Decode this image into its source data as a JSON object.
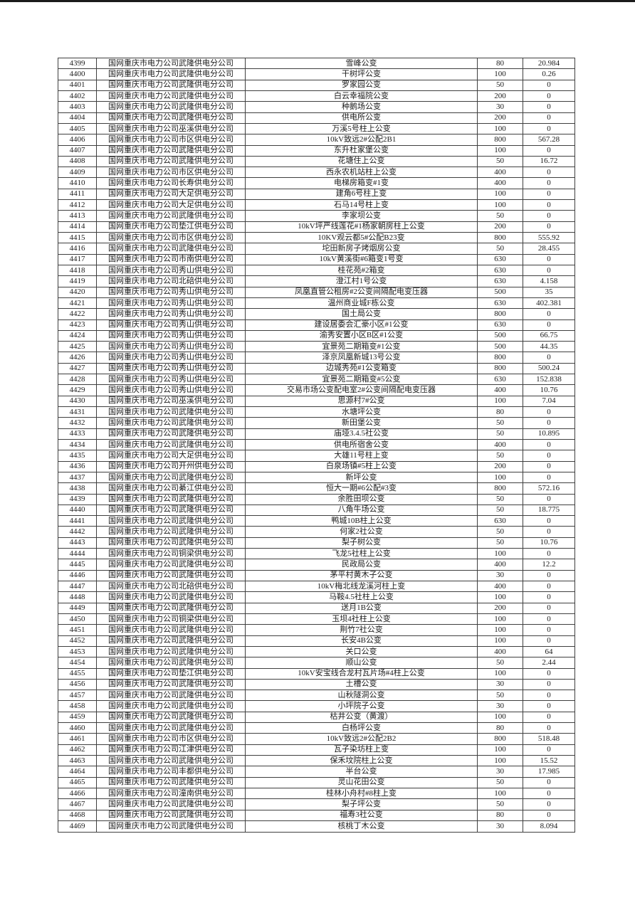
{
  "page": {
    "top_bar_color": "#1b1b1b",
    "table_border_color": "#3f3f3f",
    "background_color": "#ffffff"
  },
  "table": {
    "rows": [
      [
        "4399",
        "国网重庆市电力公司武隆供电分公司",
        "雪峰公变",
        "80",
        "20.984"
      ],
      [
        "4400",
        "国网重庆市电力公司武隆供电分公司",
        "干树坪公变",
        "100",
        "0.26"
      ],
      [
        "4401",
        "国网重庆市电力公司武隆供电分公司",
        "罗家园公变",
        "50",
        "0"
      ],
      [
        "4402",
        "国网重庆市电力公司武隆供电分公司",
        "白云幸福院公变",
        "200",
        "0"
      ],
      [
        "4403",
        "国网重庆市电力公司武隆供电分公司",
        "种鹅场公变",
        "30",
        "0"
      ],
      [
        "4404",
        "国网重庆市电力公司武隆供电分公司",
        "供电所公变",
        "200",
        "0"
      ],
      [
        "4405",
        "国网重庆市电力公司巫溪供电分公司",
        "万溪5号柱上公变",
        "100",
        "0"
      ],
      [
        "4406",
        "国网重庆市电力公司市区供电分公司",
        "10kV致远2#公配2B1",
        "800",
        "567.28"
      ],
      [
        "4407",
        "国网重庆市电力公司武隆供电分公司",
        "东升杜家堡公变",
        "100",
        "0"
      ],
      [
        "4408",
        "国网重庆市电力公司武隆供电分公司",
        "花塘住上公变",
        "50",
        "16.72"
      ],
      [
        "4409",
        "国网重庆市电力公司市区供电分公司",
        "西永农机站柱上公变",
        "400",
        "0"
      ],
      [
        "4410",
        "国网重庆市电力公司长寿供电分公司",
        "电梯房箱变#1变",
        "400",
        "0"
      ],
      [
        "4411",
        "国网重庆市电力公司大足供电分公司",
        "建角6号柱上变",
        "100",
        "0"
      ],
      [
        "4412",
        "国网重庆市电力公司大足供电分公司",
        "石马14号柱上变",
        "100",
        "0"
      ],
      [
        "4413",
        "国网重庆市电力公司武隆供电分公司",
        "李家坝公变",
        "50",
        "0"
      ],
      [
        "4414",
        "国网重庆市电力公司垫江供电分公司",
        "10kV坪严线莲花#1杨家朝房柱上公变",
        "200",
        "0"
      ],
      [
        "4415",
        "国网重庆市电力公司市区供电分公司",
        "10KV观云都5#公配B23变",
        "800",
        "555.92"
      ],
      [
        "4416",
        "国网重庆市电力公司武隆供电分公司",
        "坨田新房子烤烟房公变",
        "50",
        "28.455"
      ],
      [
        "4417",
        "国网重庆市电力公司市南供电分公司",
        "10kV黄溪街#6箱变1号变",
        "630",
        "0"
      ],
      [
        "4418",
        "国网重庆市电力公司秀山供电分公司",
        "桂花苑#2箱变",
        "630",
        "0"
      ],
      [
        "4419",
        "国网重庆市电力公司北碚供电分公司",
        "澄江村1号公变",
        "630",
        "4.158"
      ],
      [
        "4420",
        "国网重庆市电力公司秀山供电分公司",
        "凤凰直管公租房#2公变间隔配电变压器",
        "500",
        "35"
      ],
      [
        "4421",
        "国网重庆市电力公司秀山供电分公司",
        "温州商业城F栋公变",
        "630",
        "402.381"
      ],
      [
        "4422",
        "国网重庆市电力公司秀山供电分公司",
        "国土局公变",
        "800",
        "0"
      ],
      [
        "4423",
        "国网重庆市电力公司秀山供电分公司",
        "建设居委会汇豪小区#1公变",
        "630",
        "0"
      ],
      [
        "4424",
        "国网重庆市电力公司秀山供电分公司",
        "渝秀安置小区B区#1公变",
        "500",
        "66.75"
      ],
      [
        "4425",
        "国网重庆市电力公司秀山供电分公司",
        "宜景苑二期箱变#1公变",
        "500",
        "44.35"
      ],
      [
        "4426",
        "国网重庆市电力公司秀山供电分公司",
        "泽京凤凰新城13号公变",
        "800",
        "0"
      ],
      [
        "4427",
        "国网重庆市电力公司秀山供电分公司",
        "边城秀苑#1公变箱变",
        "800",
        "500.24"
      ],
      [
        "4428",
        "国网重庆市电力公司秀山供电分公司",
        "宜景苑二期箱变#5公变",
        "630",
        "152.838"
      ],
      [
        "4429",
        "国网重庆市电力公司秀山供电分公司",
        "交易市场公变配电室2#公变间隔配电变压器",
        "400",
        "10.76"
      ],
      [
        "4430",
        "国网重庆市电力公司巫溪供电分公司",
        "思源村7#公变",
        "100",
        "7.04"
      ],
      [
        "4431",
        "国网重庆市电力公司武隆供电分公司",
        "水塘坪公变",
        "80",
        "0"
      ],
      [
        "4432",
        "国网重庆市电力公司武隆供电分公司",
        "新田堡公变",
        "50",
        "0"
      ],
      [
        "4433",
        "国网重庆市电力公司武隆供电分公司",
        "庙垭3.4.5社公变",
        "50",
        "10.895"
      ],
      [
        "4434",
        "国网重庆市电力公司武隆供电分公司",
        "供电所宿舍公变",
        "400",
        "0"
      ],
      [
        "4435",
        "国网重庆市电力公司大足供电分公司",
        "大雄11号柱上变",
        "50",
        "0"
      ],
      [
        "4436",
        "国网重庆市电力公司开州供电分公司",
        "白泉场镇#5柱上公变",
        "200",
        "0"
      ],
      [
        "4437",
        "国网重庆市电力公司武隆供电分公司",
        "新坪公变",
        "100",
        "0"
      ],
      [
        "4438",
        "国网重庆市电力公司綦江供电分公司",
        "恒大一期#6公配#3变",
        "800",
        "572.16"
      ],
      [
        "4439",
        "国网重庆市电力公司武隆供电分公司",
        "余胜田坝公变",
        "50",
        "0"
      ],
      [
        "4440",
        "国网重庆市电力公司武隆供电分公司",
        "八角牛场公变",
        "50",
        "18.775"
      ],
      [
        "4441",
        "国网重庆市电力公司武隆供电分公司",
        "鸭城10B柱上公变",
        "630",
        "0"
      ],
      [
        "4442",
        "国网重庆市电力公司武隆供电分公司",
        "何家2社公变",
        "50",
        "0"
      ],
      [
        "4443",
        "国网重庆市电力公司武隆供电分公司",
        "梨子树公变",
        "50",
        "10.76"
      ],
      [
        "4444",
        "国网重庆市电力公司铜梁供电分公司",
        "飞龙5社柱上公变",
        "100",
        "0"
      ],
      [
        "4445",
        "国网重庆市电力公司武隆供电分公司",
        "民政局公变",
        "400",
        "12.2"
      ],
      [
        "4446",
        "国网重庆市电力公司武隆供电分公司",
        "茅平村黄木子公变",
        "30",
        "0"
      ],
      [
        "4447",
        "国网重庆市电力公司北碚供电分公司",
        "10kV梅北线龙溪河柱上变",
        "400",
        "0"
      ],
      [
        "4448",
        "国网重庆市电力公司武隆供电分公司",
        "马鞍4.5社柱上公变",
        "100",
        "0"
      ],
      [
        "4449",
        "国网重庆市电力公司武隆供电分公司",
        "送月1B公变",
        "200",
        "0"
      ],
      [
        "4450",
        "国网重庆市电力公司铜梁供电分公司",
        "玉坝4社柱上公变",
        "100",
        "0"
      ],
      [
        "4451",
        "国网重庆市电力公司武隆供电分公司",
        "荆竹7社公变",
        "100",
        "0"
      ],
      [
        "4452",
        "国网重庆市电力公司武隆供电分公司",
        "长安4B公变",
        "100",
        "0"
      ],
      [
        "4453",
        "国网重庆市电力公司武隆供电分公司",
        "关口公变",
        "400",
        "64"
      ],
      [
        "4454",
        "国网重庆市电力公司武隆供电分公司",
        "顺山公变",
        "50",
        "2.44"
      ],
      [
        "4455",
        "国网重庆市电力公司垫江供电分公司",
        "10kV安宝线合龙村瓦片场#4柱上公变",
        "100",
        "0"
      ],
      [
        "4456",
        "国网重庆市电力公司武隆供电分公司",
        "土槽公变",
        "30",
        "0"
      ],
      [
        "4457",
        "国网重庆市电力公司武隆供电分公司",
        "山秋隧洞公变",
        "50",
        "0"
      ],
      [
        "4458",
        "国网重庆市电力公司武隆供电分公司",
        "小坪院子公变",
        "30",
        "0"
      ],
      [
        "4459",
        "国网重庆市电力公司武隆供电分公司",
        "枯井公变（黄渡）",
        "100",
        "0"
      ],
      [
        "4460",
        "国网重庆市电力公司武隆供电分公司",
        "白杨坪公变",
        "80",
        "0"
      ],
      [
        "4461",
        "国网重庆市电力公司市区供电分公司",
        "10kV致远2#公配2B2",
        "800",
        "518.48"
      ],
      [
        "4462",
        "国网重庆市电力公司江津供电分公司",
        "瓦子染坊柱上变",
        "100",
        "0"
      ],
      [
        "4463",
        "国网重庆市电力公司武隆供电分公司",
        "保禾坟院柱上公变",
        "100",
        "15.52"
      ],
      [
        "4464",
        "国网重庆市电力公司丰都供电分公司",
        "半台公变",
        "30",
        "17.985"
      ],
      [
        "4465",
        "国网重庆市电力公司武隆供电分公司",
        "灵山花田公变",
        "50",
        "0"
      ],
      [
        "4466",
        "国网重庆市电力公司潼南供电分公司",
        "桂林小舟村#8柱上变",
        "100",
        "0"
      ],
      [
        "4467",
        "国网重庆市电力公司武隆供电分公司",
        "梨子坪公变",
        "50",
        "0"
      ],
      [
        "4468",
        "国网重庆市电力公司武隆供电分公司",
        "福寿3社公变",
        "80",
        "0"
      ],
      [
        "4469",
        "国网重庆市电力公司武隆供电分公司",
        "核桃丁木公变",
        "30",
        "8.094"
      ]
    ]
  }
}
